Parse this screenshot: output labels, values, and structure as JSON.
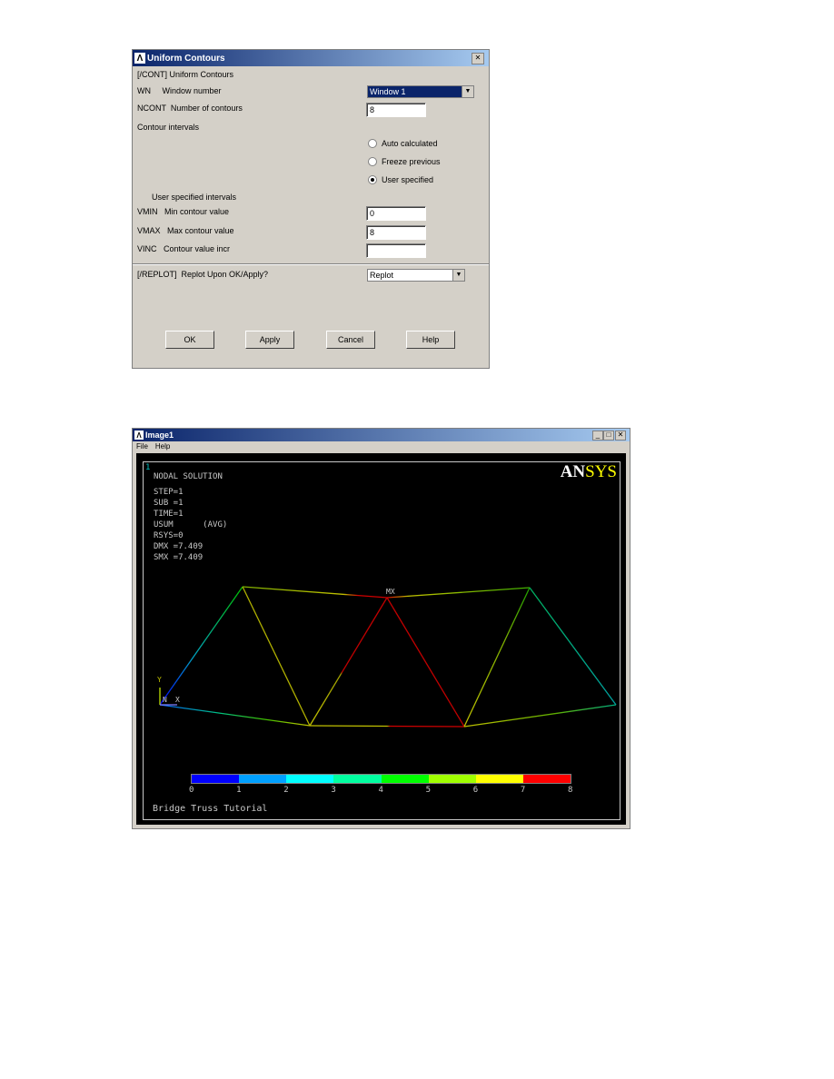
{
  "dialog": {
    "title": "Uniform Contours",
    "close_icon": "close-icon",
    "header": "[/CONT]  Uniform Contours",
    "wn_label": "WN     Window number",
    "wn_value": "Window 1",
    "ncont_label": "NCONT  Number of contours",
    "ncont_value": "8",
    "intervals_label": "Contour intervals",
    "radios": [
      {
        "label": "Auto calculated",
        "checked": false
      },
      {
        "label": "Freeze previous",
        "checked": false
      },
      {
        "label": "User specified",
        "checked": true
      }
    ],
    "user_intervals_label": "User specified intervals",
    "vmin_label": "VMIN   Min contour value",
    "vmin_value": "0",
    "vmax_label": "VMAX   Max contour value",
    "vmax_value": "8",
    "vinc_label": "VINC   Contour value incr",
    "vinc_value": "",
    "replot_label": "[/REPLOT]  Replot Upon OK/Apply?",
    "replot_value": "Replot",
    "buttons": {
      "ok": "OK",
      "apply": "Apply",
      "cancel": "Cancel",
      "help": "Help"
    }
  },
  "image_window": {
    "title": "Image1",
    "menu": [
      "File",
      "Help"
    ],
    "window_number": "1",
    "logo_an": "AN",
    "logo_sys": "SYS",
    "info": [
      "NODAL SOLUTION",
      "STEP=1",
      "SUB =1",
      "TIME=1",
      "USUM      (AVG)",
      "RSYS=0",
      "DMX =7.409",
      "SMX =7.409"
    ],
    "mx_label": "MX",
    "axis": {
      "y": "Y",
      "n": "N",
      "x": "X"
    },
    "legend_labels": [
      "0",
      "1",
      "2",
      "3",
      "4",
      "5",
      "6",
      "7",
      "8"
    ],
    "legend_colors": [
      "#0000ff",
      "#00a0ff",
      "#00ffff",
      "#00ffa0",
      "#00ff00",
      "#a0ff00",
      "#ffff00",
      "#ff0000"
    ],
    "caption": "Bridge Truss Tutorial"
  }
}
